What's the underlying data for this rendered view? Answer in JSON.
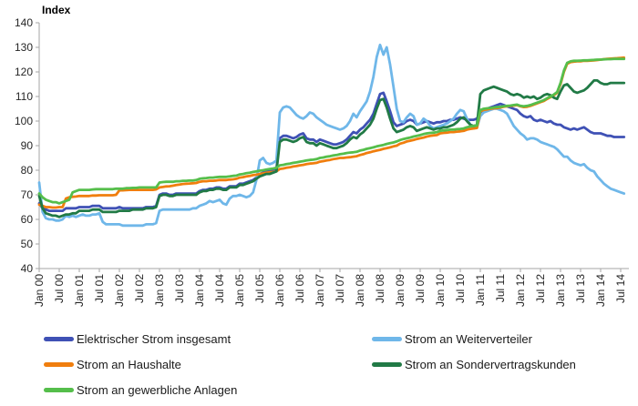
{
  "title": "Index",
  "chart_data": {
    "type": "line",
    "title": "Index",
    "x_unit": "month",
    "x_start": "Jan 2000",
    "x_end": "Aug 2014",
    "x_tick_labels": [
      "Jan 00",
      "Jul 00",
      "Jan 01",
      "Jul 01",
      "Jan 02",
      "Jul 02",
      "Jan 03",
      "Jul 03",
      "Jan 04",
      "Jul 04",
      "Jan 05",
      "Jul 05",
      "Jan 06",
      "Jul 06",
      "Jan 07",
      "Jul 07",
      "Jan 08",
      "Jul 08",
      "Jan 09",
      "Jul 09",
      "Jan 10",
      "Jul 10",
      "Jan 11",
      "Jul 11",
      "Jan 12",
      "Jul 12",
      "Jan 13",
      "Jul 13",
      "Jan 14",
      "Jul 14"
    ],
    "x_tick_interval_months": 6,
    "ylim": [
      40,
      140
    ],
    "y_ticks": [
      40,
      50,
      60,
      70,
      80,
      90,
      100,
      110,
      120,
      130,
      140
    ],
    "grid": false,
    "legend_position": "bottom",
    "axis_color": "#a6a6a6",
    "series": [
      {
        "name": "Elektrischer Strom insgesamt",
        "color": "#3f51b5",
        "values": [
          66.5,
          64.5,
          64,
          63.5,
          63.5,
          63.5,
          63.5,
          63.5,
          64.5,
          64.5,
          64.5,
          64.5,
          65,
          65,
          65,
          65,
          65.5,
          65.5,
          65.5,
          64.5,
          64.5,
          64.5,
          64.5,
          64.5,
          65,
          64.5,
          64.5,
          64.5,
          64.5,
          64.5,
          64.5,
          64.5,
          65,
          65,
          65,
          65.5,
          70,
          70.5,
          70.5,
          70,
          70,
          70.5,
          70.5,
          70.5,
          70.5,
          70.5,
          70.5,
          70.5,
          71.5,
          72,
          72,
          72.5,
          72.5,
          73,
          73,
          72.5,
          72.5,
          73.5,
          73.5,
          73.5,
          74.5,
          74.5,
          75,
          75.5,
          76,
          77,
          78.5,
          79,
          79.5,
          79.5,
          80,
          80.5,
          93,
          94,
          94,
          93.5,
          93,
          93.5,
          94.5,
          95,
          93,
          92.5,
          92.5,
          91.5,
          92.5,
          92,
          91.5,
          91,
          90.5,
          90.5,
          91,
          91.5,
          92.5,
          94,
          95.5,
          95,
          96.5,
          97.5,
          99,
          100.5,
          103,
          107,
          111,
          111.5,
          108,
          104,
          99.5,
          98,
          98.5,
          99,
          100,
          100.5,
          100,
          98.5,
          99,
          99.5,
          100,
          99.5,
          99,
          99.5,
          99.5,
          100,
          100,
          100.5,
          100.5,
          101,
          101.5,
          101,
          100.5,
          100.5,
          100.5,
          101,
          103.5,
          104.5,
          105,
          105.5,
          106,
          106.5,
          107,
          106.5,
          106,
          105.5,
          105,
          104.5,
          103,
          102,
          101.5,
          102,
          100.5,
          100,
          100.5,
          100,
          99.5,
          100,
          99,
          98.5,
          98.5,
          97.5,
          97,
          96.5,
          97,
          96.5,
          97,
          97.5,
          96.5,
          95.5,
          95,
          95,
          95,
          94.5,
          94,
          94,
          93.5,
          93.5,
          93.5,
          93.5
        ]
      },
      {
        "name": "Strom an Weiterverteiler",
        "color": "#6fb7e9",
        "values": [
          75,
          63,
          60.5,
          60,
          60,
          59.5,
          59.5,
          60,
          61.5,
          61,
          61.5,
          61,
          61.5,
          62,
          61.5,
          61.5,
          62,
          62,
          62.5,
          59,
          58,
          58,
          58,
          58,
          58,
          57.5,
          57.5,
          57.5,
          57.5,
          57.5,
          57.5,
          57.5,
          58,
          58,
          58,
          58.5,
          63.5,
          64,
          64,
          64,
          64,
          64,
          64,
          64,
          64,
          64,
          64.5,
          64.5,
          65.5,
          66,
          66.5,
          67.5,
          67,
          67.5,
          68,
          66.5,
          66,
          68.5,
          69.5,
          69.5,
          70,
          69.5,
          69,
          69.5,
          71,
          76,
          84,
          85,
          83,
          82.5,
          83,
          84,
          103.5,
          105.5,
          106,
          105.5,
          104,
          102.5,
          101.5,
          101,
          102,
          103.5,
          103,
          101.5,
          100.5,
          99.5,
          98.5,
          98,
          97.5,
          97,
          96.5,
          97,
          98,
          100,
          103,
          101.5,
          104,
          106,
          108,
          112,
          118,
          126,
          131,
          127,
          130,
          123,
          114,
          105,
          100,
          99.5,
          101.5,
          103,
          102,
          98.5,
          99,
          101,
          100,
          98,
          97,
          97.5,
          98,
          98.5,
          99,
          100,
          101,
          103,
          104.5,
          104,
          101,
          98.5,
          97,
          97.5,
          102,
          103.5,
          104,
          104.5,
          105,
          105,
          104.5,
          104,
          103,
          100.5,
          98,
          96.5,
          95,
          94,
          92.5,
          93,
          93,
          92.5,
          91.5,
          91,
          90.5,
          90,
          89.5,
          88.5,
          87,
          85.5,
          85.5,
          84,
          83,
          82.5,
          82,
          82.5,
          81,
          80,
          79.5,
          77.5,
          76,
          74.5,
          73.5,
          72.5,
          72,
          71.5,
          71,
          70.5
        ]
      },
      {
        "name": "Strom an Haushalte",
        "color": "#f07e0e",
        "values": [
          66,
          65.5,
          65,
          65,
          64.8,
          64.8,
          65,
          65,
          68.5,
          69,
          69.2,
          69.3,
          69.5,
          69.5,
          69.5,
          69.5,
          69.7,
          69.7,
          69.8,
          69.8,
          69.8,
          69.8,
          69.8,
          70,
          71.8,
          71.8,
          71.9,
          72,
          72,
          72,
          72,
          72,
          72,
          72,
          72,
          72.2,
          73,
          73.2,
          73.4,
          73.5,
          73.7,
          74,
          74.2,
          74.4,
          74.5,
          74.6,
          74.7,
          74.8,
          75.3,
          75.5,
          75.5,
          75.7,
          75.7,
          75.8,
          76,
          76,
          76,
          76.2,
          76.3,
          76.5,
          77,
          77.2,
          77.5,
          77.7,
          78,
          78.2,
          78.5,
          78.7,
          79,
          79.2,
          79.3,
          79.5,
          80.5,
          80.7,
          81,
          81.2,
          81.5,
          81.7,
          82,
          82.2,
          82.5,
          82.7,
          82.8,
          83,
          83.5,
          83.7,
          84,
          84.2,
          84.5,
          84.7,
          85,
          85,
          85.2,
          85.3,
          85.5,
          85.7,
          86.2,
          86.5,
          87,
          87.3,
          87.7,
          88,
          88.3,
          88.7,
          89,
          89.3,
          89.7,
          90,
          90.8,
          91.2,
          91.7,
          92,
          92.3,
          92.7,
          93,
          93.3,
          93.7,
          94,
          94.2,
          94.3,
          95,
          95.2,
          95.3,
          95.5,
          95.5,
          95.7,
          95.8,
          96,
          96.5,
          96.8,
          97,
          97.2,
          104,
          104.5,
          104.7,
          105,
          105.2,
          105.3,
          105.5,
          105.8,
          106,
          106.2,
          106.3,
          106.5,
          106,
          105.7,
          105.8,
          106.2,
          106.7,
          107.2,
          107.7,
          108.2,
          109,
          109.7,
          110.5,
          111.5,
          115,
          120,
          123.3,
          124,
          124.2,
          124.3,
          124.3,
          124.5,
          124.5,
          124.6,
          124.7,
          124.8,
          125,
          125.2,
          125.3,
          125.4,
          125.5,
          125.6,
          125.7,
          125.8
        ]
      },
      {
        "name": "Strom an Sondervertragskunden",
        "color": "#217a46",
        "values": [
          69.5,
          64.5,
          62.5,
          62,
          61.5,
          61.5,
          61,
          61.5,
          62,
          62,
          62.5,
          62.5,
          63.5,
          63.5,
          63.5,
          63.5,
          64,
          64,
          64,
          63,
          63,
          63,
          63,
          63,
          63.5,
          63.5,
          63.5,
          63.5,
          64,
          64,
          64,
          64,
          64.5,
          64.5,
          64.5,
          65,
          69.5,
          70,
          70,
          69.5,
          69.5,
          70,
          70,
          70,
          70,
          70,
          70,
          70,
          71,
          71.5,
          71.5,
          72,
          72,
          72.5,
          72.5,
          72,
          72,
          73,
          73,
          73,
          74,
          74,
          74.5,
          75,
          75.5,
          76.5,
          77.5,
          78,
          78.5,
          78.5,
          79,
          79.5,
          91.5,
          92.5,
          92.5,
          92,
          91.5,
          92,
          93,
          93.5,
          91.5,
          91,
          91,
          90,
          91,
          90.5,
          90,
          89.5,
          89,
          89,
          89.5,
          90,
          91,
          92.5,
          93.5,
          93,
          94.5,
          95.5,
          97,
          98.5,
          101,
          105,
          108.5,
          109,
          105.5,
          101,
          97,
          95.5,
          96,
          96.5,
          97.5,
          98,
          97.5,
          96,
          96.5,
          97,
          97.5,
          97,
          96.5,
          97,
          97,
          97.5,
          97.5,
          98,
          98.5,
          99.5,
          101,
          101.5,
          100,
          98.5,
          98,
          98.5,
          111,
          112.5,
          113,
          113.5,
          114,
          113.5,
          113,
          112.5,
          112,
          111,
          110.5,
          111,
          110.5,
          109.5,
          110,
          109.5,
          110,
          109,
          109.5,
          110.5,
          111,
          110.5,
          109.5,
          109,
          112,
          114.5,
          115,
          113.5,
          112,
          111.5,
          112,
          112.5,
          113.5,
          115,
          116.5,
          116.5,
          115.5,
          115,
          115,
          115.5,
          115.5,
          115.5,
          115.5,
          115.5
        ]
      },
      {
        "name": "Strom an gewerbliche Anlagen",
        "color": "#55be4b",
        "values": [
          70.5,
          69,
          68,
          67.5,
          67,
          67,
          66.5,
          67,
          67.5,
          68,
          71,
          71.5,
          72,
          72,
          72,
          72,
          72.2,
          72.3,
          72.3,
          72.3,
          72.3,
          72.3,
          72.3,
          72.5,
          72.5,
          72.5,
          72.7,
          72.7,
          72.8,
          72.8,
          73,
          73,
          73,
          73,
          73,
          73,
          75,
          75.2,
          75.3,
          75.3,
          75.3,
          75.5,
          75.5,
          75.7,
          75.7,
          75.8,
          75.8,
          76,
          76.5,
          76.7,
          76.8,
          77,
          77,
          77.2,
          77.3,
          77.3,
          77.3,
          77.5,
          77.7,
          77.8,
          78.3,
          78.5,
          78.8,
          79,
          79.3,
          79.5,
          79.8,
          80,
          80.3,
          80.5,
          80.7,
          81,
          82,
          82.2,
          82.5,
          82.7,
          83,
          83.2,
          83.5,
          83.7,
          84,
          84.2,
          84.3,
          84.5,
          85,
          85.2,
          85.5,
          85.7,
          86,
          86.2,
          86.5,
          86.7,
          87,
          87.2,
          87.3,
          87.5,
          88,
          88.3,
          88.7,
          89,
          89.3,
          89.7,
          90,
          90.3,
          90.7,
          91,
          91.3,
          91.7,
          92.3,
          92.7,
          93,
          93.3,
          93.7,
          94,
          94.3,
          94.7,
          95,
          95.2,
          95.3,
          95.5,
          96,
          96.2,
          96.3,
          96.5,
          96.5,
          96.7,
          96.8,
          97,
          97.5,
          97.8,
          98,
          98.2,
          104.5,
          105,
          105.2,
          105.3,
          105.5,
          105.7,
          105.8,
          106,
          106.2,
          106.3,
          106.5,
          106.7,
          106.2,
          106,
          106.2,
          106.5,
          107,
          107.5,
          108,
          108.5,
          109.3,
          110,
          110.8,
          111.8,
          115.5,
          120.5,
          123.7,
          124.3,
          124.5,
          124.5,
          124.6,
          124.7,
          124.7,
          124.8,
          124.9,
          125,
          125,
          125.1,
          125.2,
          125.2,
          125.3,
          125.3,
          125.3,
          125.3
        ]
      }
    ]
  },
  "legend": {
    "left_column_series": [
      0,
      2,
      4
    ],
    "right_column_series": [
      1,
      3
    ]
  }
}
